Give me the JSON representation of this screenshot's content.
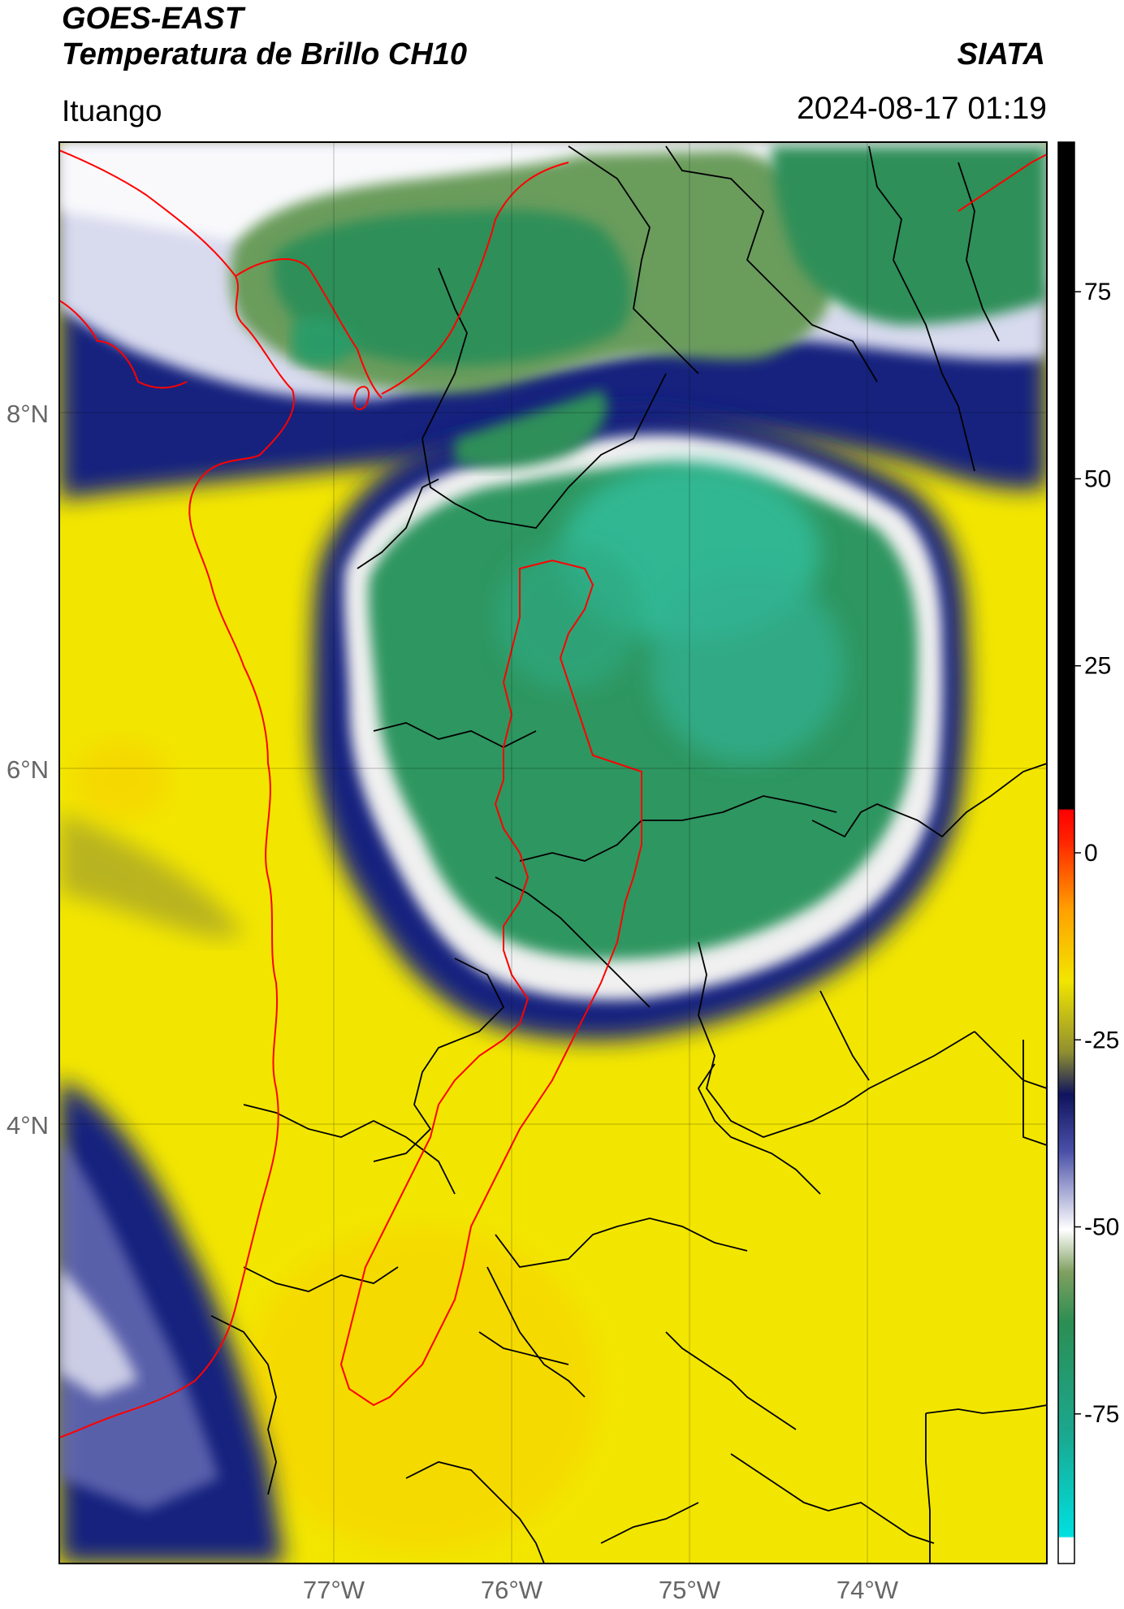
{
  "header": {
    "title_line1": "GOES-EAST",
    "title_line2": "Temperatura de Brillo CH10",
    "organization": "SIATA",
    "location": "Ituango",
    "timestamp": "2024-08-17 01:19"
  },
  "map": {
    "lat_ticks": [
      {
        "label": "8°N",
        "value": 8
      },
      {
        "label": "6°N",
        "value": 6
      },
      {
        "label": "4°N",
        "value": 4
      }
    ],
    "lon_ticks": [
      {
        "label": "77°W",
        "value": -77
      },
      {
        "label": "76°W",
        "value": -76
      },
      {
        "label": "75°W",
        "value": -75
      },
      {
        "label": "74°W",
        "value": -74
      }
    ],
    "colors": {
      "warm_background": "#f2e600",
      "cloud_top_green": "#2a9b68",
      "cloud_core_teal": "#34c0a0",
      "cold_ring_navy": "#16207e",
      "ring_white": "#eeeeee",
      "coast_border": "#ff0000",
      "admin_border": "#000000"
    }
  },
  "colorbar": {
    "ticks": [
      {
        "label": "75",
        "value": 75
      },
      {
        "label": "50",
        "value": 50
      },
      {
        "label": "25",
        "value": 25
      },
      {
        "label": "0",
        "value": 0
      },
      {
        "label": "-25",
        "value": -25
      },
      {
        "label": "-50",
        "value": -50
      },
      {
        "label": "-75",
        "value": -75
      }
    ],
    "range": [
      -95,
      95
    ]
  }
}
